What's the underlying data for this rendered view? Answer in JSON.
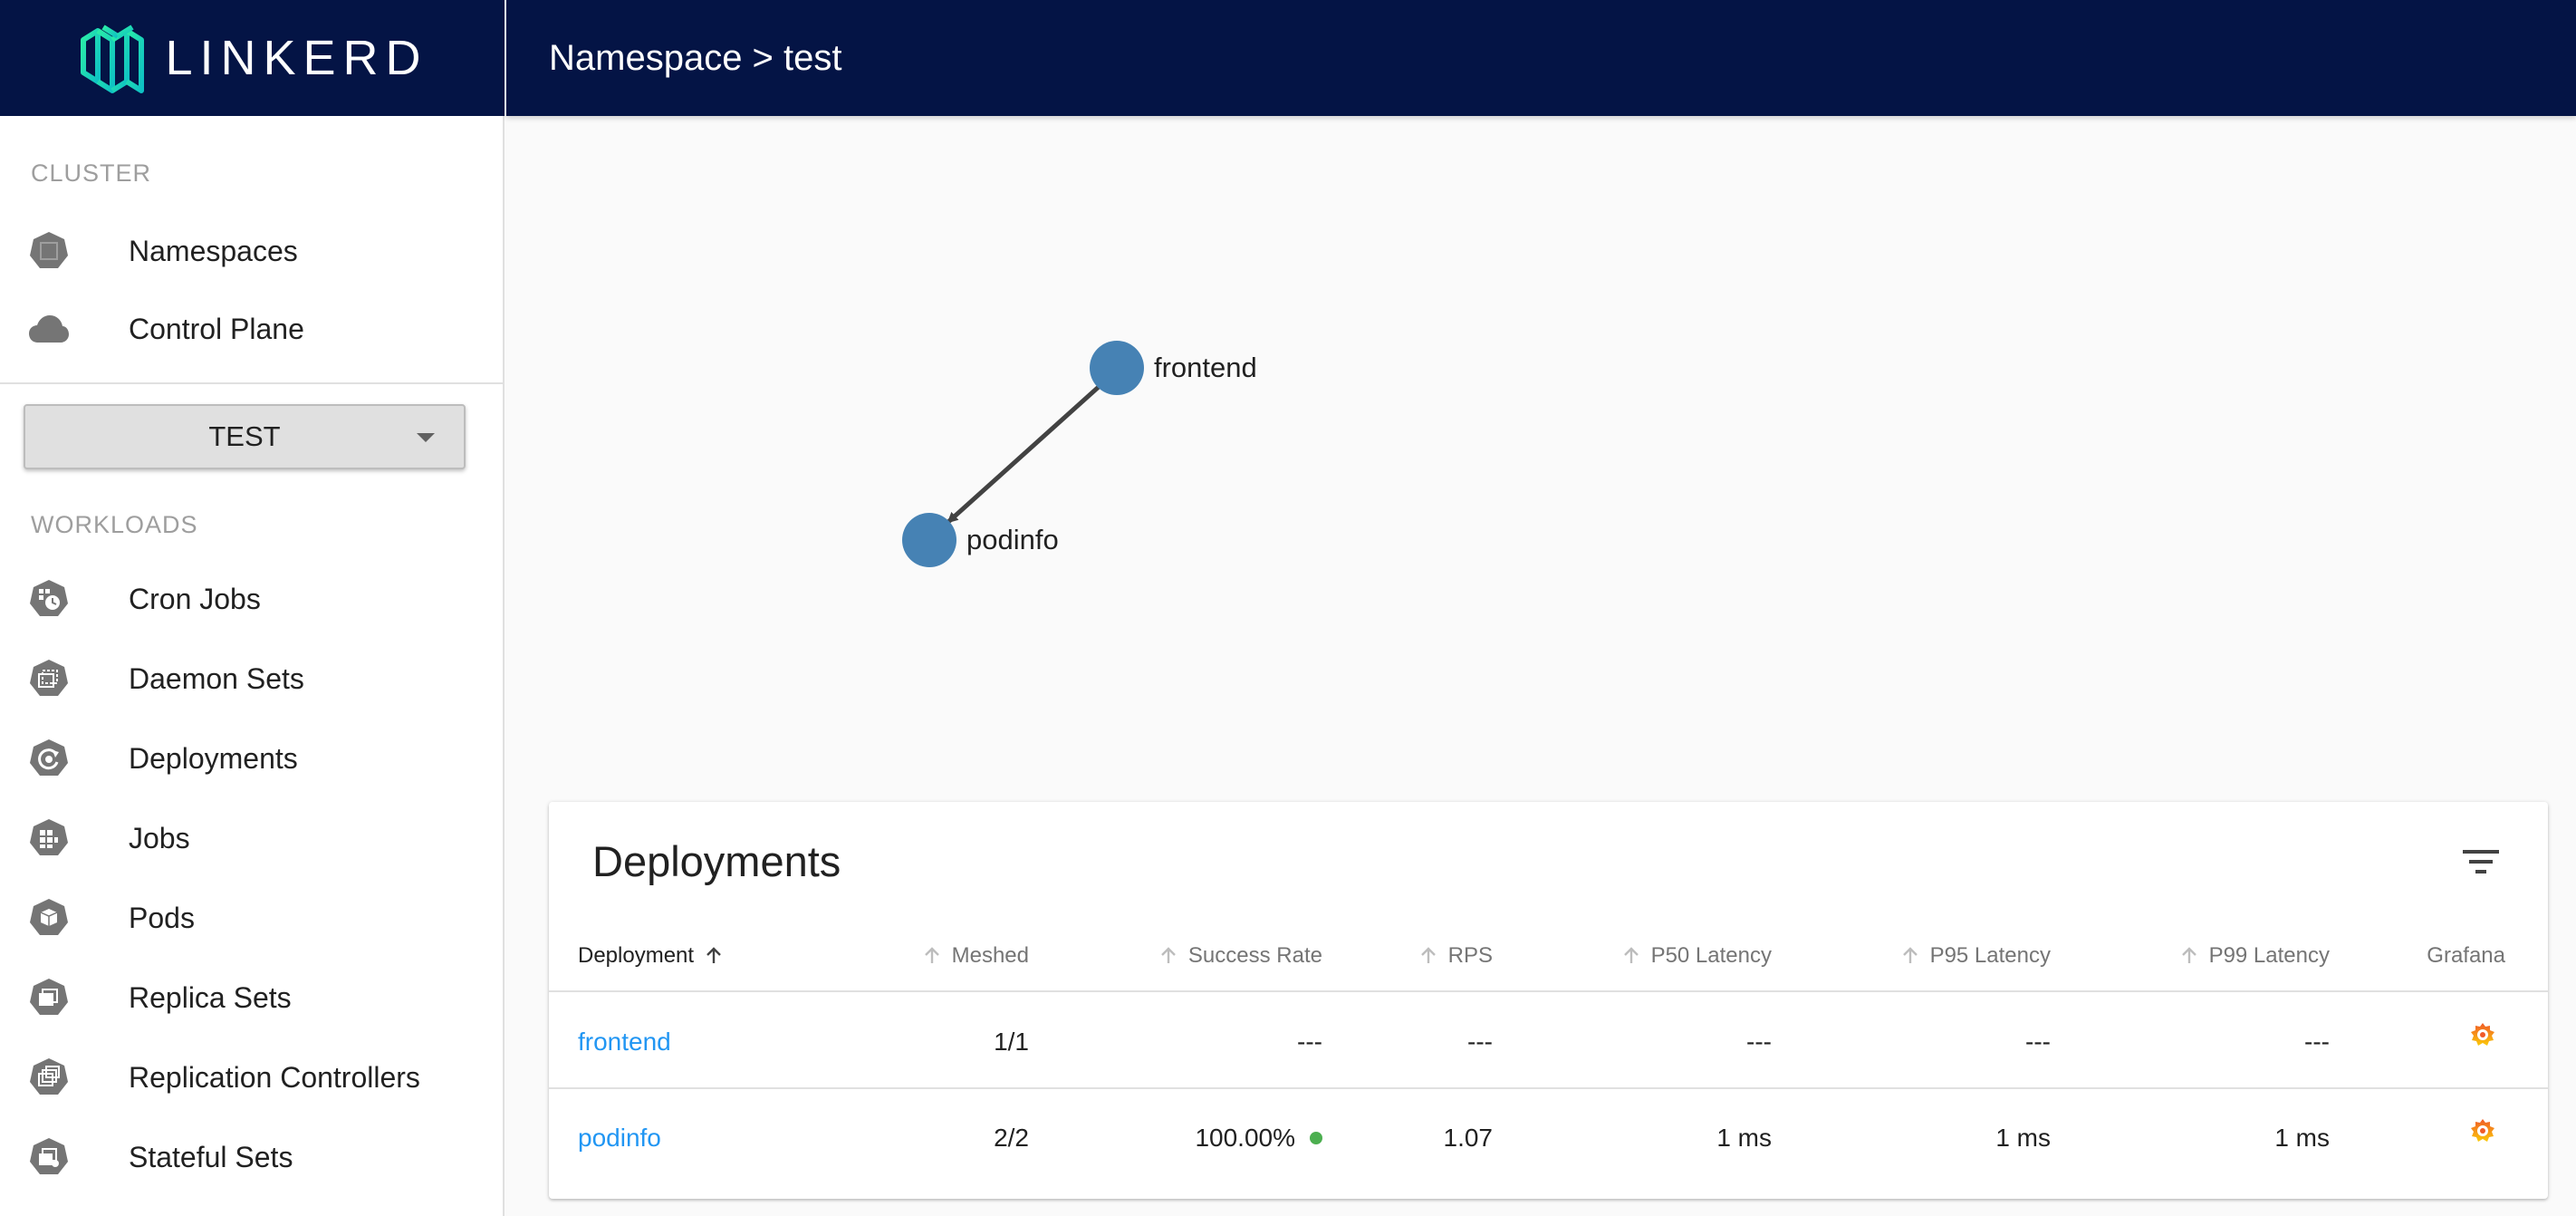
{
  "brand": {
    "name": "LINKERD"
  },
  "header": {
    "breadcrumb": "Namespace > test"
  },
  "sidebar": {
    "cluster_label": "CLUSTER",
    "cluster_items": [
      {
        "label": "Namespaces",
        "icon": "namespace-icon"
      },
      {
        "label": "Control Plane",
        "icon": "cloud-icon"
      }
    ],
    "namespace_select": {
      "value": "TEST"
    },
    "workloads_label": "WORKLOADS",
    "workload_items": [
      {
        "label": "Cron Jobs",
        "icon": "cronjob-icon"
      },
      {
        "label": "Daemon Sets",
        "icon": "daemonset-icon"
      },
      {
        "label": "Deployments",
        "icon": "deployment-icon"
      },
      {
        "label": "Jobs",
        "icon": "job-icon"
      },
      {
        "label": "Pods",
        "icon": "pod-icon"
      },
      {
        "label": "Replica Sets",
        "icon": "replicaset-icon"
      },
      {
        "label": "Replication Controllers",
        "icon": "replication-controller-icon"
      },
      {
        "label": "Stateful Sets",
        "icon": "statefulset-icon"
      }
    ]
  },
  "graph": {
    "nodes": [
      {
        "id": "frontend",
        "label": "frontend"
      },
      {
        "id": "podinfo",
        "label": "podinfo"
      }
    ],
    "edges": [
      {
        "from": "frontend",
        "to": "podinfo"
      }
    ],
    "node_color": "#4682b4"
  },
  "deployments": {
    "title": "Deployments",
    "columns": [
      "Deployment",
      "Meshed",
      "Success Rate",
      "RPS",
      "P50 Latency",
      "P95 Latency",
      "P99 Latency",
      "Grafana"
    ],
    "rows": [
      {
        "name": "frontend",
        "meshed": "1/1",
        "success_rate": "---",
        "success_status": "none",
        "rps": "---",
        "p50": "---",
        "p95": "---",
        "p99": "---",
        "grafana_icon": "grafana-icon"
      },
      {
        "name": "podinfo",
        "meshed": "2/2",
        "success_rate": "100.00%",
        "success_status": "good",
        "rps": "1.07",
        "p50": "1 ms",
        "p95": "1 ms",
        "p99": "1 ms",
        "grafana_icon": "grafana-icon"
      }
    ],
    "status_color_good": "#4caf50",
    "link_color": "#2196f3"
  },
  "colors": {
    "header_bg": "#041445",
    "logo_accent": "#2beda7"
  }
}
